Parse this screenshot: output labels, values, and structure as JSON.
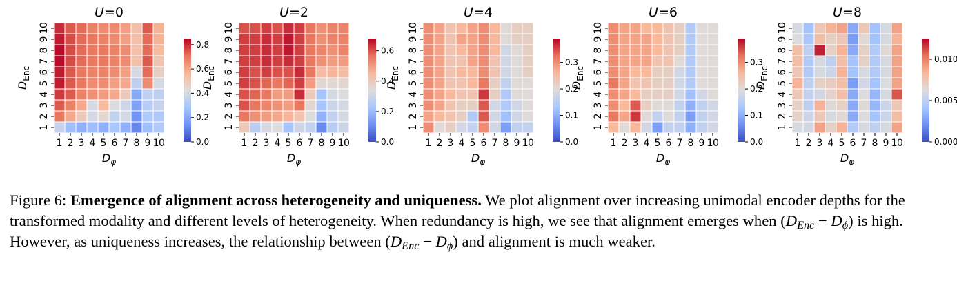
{
  "colormap": {
    "name": "coolwarm",
    "stops": [
      "#3b4cc0",
      "#6f92f3",
      "#aac7fd",
      "#dddcdc",
      "#f7b89c",
      "#e7745b",
      "#b40426"
    ]
  },
  "chart_data": [
    {
      "type": "heatmap",
      "title": "U=0",
      "xlabel": "D_φ",
      "ylabel": "D_Enc",
      "x": [
        1,
        2,
        3,
        4,
        5,
        6,
        7,
        8,
        9,
        10
      ],
      "y": [
        1,
        2,
        3,
        4,
        5,
        6,
        7,
        8,
        9,
        10
      ],
      "vmin": 0.0,
      "vmax": 0.85,
      "colorbar_ticks": [
        "0.0",
        "0.2",
        "0.4",
        "0.6",
        "0.8"
      ],
      "values": [
        [
          0.36,
          0.26,
          0.22,
          0.26,
          0.22,
          0.28,
          0.22,
          0.12,
          0.26,
          0.3
        ],
        [
          0.7,
          0.6,
          0.5,
          0.4,
          0.45,
          0.35,
          0.4,
          0.15,
          0.3,
          0.3
        ],
        [
          0.74,
          0.68,
          0.6,
          0.4,
          0.56,
          0.42,
          0.38,
          0.18,
          0.32,
          0.36
        ],
        [
          0.78,
          0.74,
          0.68,
          0.65,
          0.63,
          0.6,
          0.5,
          0.2,
          0.34,
          0.34
        ],
        [
          0.82,
          0.74,
          0.7,
          0.66,
          0.66,
          0.62,
          0.6,
          0.34,
          0.66,
          0.4
        ],
        [
          0.82,
          0.74,
          0.7,
          0.68,
          0.68,
          0.66,
          0.62,
          0.4,
          0.72,
          0.48
        ],
        [
          0.84,
          0.76,
          0.72,
          0.7,
          0.7,
          0.68,
          0.66,
          0.54,
          0.74,
          0.52
        ],
        [
          0.84,
          0.76,
          0.72,
          0.7,
          0.7,
          0.68,
          0.66,
          0.54,
          0.72,
          0.56
        ],
        [
          0.82,
          0.76,
          0.72,
          0.7,
          0.68,
          0.66,
          0.62,
          0.54,
          0.72,
          0.58
        ],
        [
          0.8,
          0.74,
          0.72,
          0.68,
          0.66,
          0.66,
          0.62,
          0.54,
          0.74,
          0.58
        ]
      ]
    },
    {
      "type": "heatmap",
      "title": "U=2",
      "xlabel": "D_φ",
      "ylabel": "D_Enc",
      "x": [
        1,
        2,
        3,
        4,
        5,
        6,
        7,
        8,
        9,
        10
      ],
      "y": [
        1,
        2,
        3,
        4,
        5,
        6,
        7,
        8,
        9,
        10
      ],
      "vmin": 0.0,
      "vmax": 0.68,
      "colorbar_ticks": [
        "0.0",
        "0.2",
        "0.4",
        "0.6"
      ],
      "values": [
        [
          0.4,
          0.26,
          0.32,
          0.34,
          0.22,
          0.3,
          0.28,
          0.1,
          0.26,
          0.3
        ],
        [
          0.56,
          0.52,
          0.5,
          0.48,
          0.46,
          0.42,
          0.34,
          0.18,
          0.28,
          0.32
        ],
        [
          0.6,
          0.56,
          0.54,
          0.52,
          0.5,
          0.56,
          0.36,
          0.22,
          0.3,
          0.32
        ],
        [
          0.6,
          0.58,
          0.56,
          0.5,
          0.5,
          0.64,
          0.4,
          0.22,
          0.32,
          0.34
        ],
        [
          0.62,
          0.6,
          0.58,
          0.56,
          0.58,
          0.62,
          0.5,
          0.36,
          0.36,
          0.36
        ],
        [
          0.62,
          0.6,
          0.62,
          0.6,
          0.6,
          0.64,
          0.56,
          0.44,
          0.46,
          0.44
        ],
        [
          0.62,
          0.62,
          0.64,
          0.62,
          0.64,
          0.62,
          0.56,
          0.52,
          0.5,
          0.5
        ],
        [
          0.62,
          0.62,
          0.64,
          0.62,
          0.66,
          0.62,
          0.56,
          0.54,
          0.52,
          0.54
        ],
        [
          0.62,
          0.62,
          0.64,
          0.62,
          0.66,
          0.62,
          0.56,
          0.52,
          0.54,
          0.54
        ],
        [
          0.6,
          0.6,
          0.62,
          0.6,
          0.64,
          0.62,
          0.56,
          0.52,
          0.54,
          0.54
        ]
      ]
    },
    {
      "type": "heatmap",
      "title": "U=4",
      "xlabel": "D_φ",
      "ylabel": "D_Enc",
      "x": [
        1,
        2,
        3,
        4,
        5,
        6,
        7,
        8,
        9,
        10
      ],
      "y": [
        1,
        2,
        3,
        4,
        5,
        6,
        7,
        8,
        9,
        10
      ],
      "vmin": 0.0,
      "vmax": 0.39,
      "colorbar_ticks": [
        "0.0",
        "0.1",
        "0.2",
        "0.3"
      ],
      "values": [
        [
          0.3,
          0.2,
          0.22,
          0.18,
          0.16,
          0.3,
          0.18,
          0.08,
          0.16,
          0.16
        ],
        [
          0.28,
          0.26,
          0.24,
          0.22,
          0.14,
          0.34,
          0.18,
          0.12,
          0.18,
          0.2
        ],
        [
          0.3,
          0.28,
          0.24,
          0.22,
          0.22,
          0.34,
          0.18,
          0.14,
          0.18,
          0.2
        ],
        [
          0.3,
          0.28,
          0.26,
          0.24,
          0.24,
          0.36,
          0.22,
          0.14,
          0.2,
          0.2
        ],
        [
          0.3,
          0.28,
          0.24,
          0.24,
          0.26,
          0.32,
          0.22,
          0.16,
          0.2,
          0.2
        ],
        [
          0.3,
          0.28,
          0.24,
          0.26,
          0.26,
          0.3,
          0.24,
          0.18,
          0.2,
          0.22
        ],
        [
          0.3,
          0.28,
          0.24,
          0.24,
          0.28,
          0.3,
          0.24,
          0.18,
          0.2,
          0.22
        ],
        [
          0.3,
          0.28,
          0.24,
          0.26,
          0.28,
          0.3,
          0.26,
          0.18,
          0.2,
          0.22
        ],
        [
          0.3,
          0.28,
          0.24,
          0.28,
          0.28,
          0.3,
          0.26,
          0.2,
          0.22,
          0.22
        ],
        [
          0.3,
          0.28,
          0.24,
          0.26,
          0.28,
          0.3,
          0.26,
          0.2,
          0.22,
          0.22
        ]
      ]
    },
    {
      "type": "heatmap",
      "title": "U=6",
      "xlabel": "D_φ",
      "ylabel": "D_Enc",
      "x": [
        1,
        2,
        3,
        4,
        5,
        6,
        7,
        8,
        9,
        10
      ],
      "y": [
        1,
        2,
        3,
        4,
        5,
        6,
        7,
        8,
        9,
        10
      ],
      "vmin": 0.0,
      "vmax": 0.39,
      "colorbar_ticks": [
        "0.0",
        "0.1",
        "0.2",
        "0.3"
      ],
      "values": [
        [
          0.26,
          0.2,
          0.26,
          0.18,
          0.08,
          0.16,
          0.16,
          0.1,
          0.16,
          0.18
        ],
        [
          0.32,
          0.28,
          0.36,
          0.2,
          0.16,
          0.2,
          0.16,
          0.08,
          0.16,
          0.18
        ],
        [
          0.3,
          0.26,
          0.34,
          0.22,
          0.2,
          0.2,
          0.16,
          0.1,
          0.16,
          0.18
        ],
        [
          0.3,
          0.28,
          0.26,
          0.22,
          0.22,
          0.22,
          0.18,
          0.12,
          0.18,
          0.2
        ],
        [
          0.32,
          0.28,
          0.24,
          0.24,
          0.22,
          0.22,
          0.18,
          0.14,
          0.2,
          0.2
        ],
        [
          0.3,
          0.28,
          0.26,
          0.26,
          0.22,
          0.22,
          0.18,
          0.14,
          0.2,
          0.2
        ],
        [
          0.3,
          0.28,
          0.28,
          0.28,
          0.24,
          0.24,
          0.2,
          0.14,
          0.2,
          0.2
        ],
        [
          0.3,
          0.28,
          0.28,
          0.28,
          0.26,
          0.24,
          0.22,
          0.14,
          0.2,
          0.2
        ],
        [
          0.3,
          0.28,
          0.28,
          0.28,
          0.26,
          0.24,
          0.22,
          0.14,
          0.2,
          0.2
        ],
        [
          0.3,
          0.28,
          0.28,
          0.26,
          0.26,
          0.24,
          0.22,
          0.14,
          0.2,
          0.2
        ]
      ]
    },
    {
      "type": "heatmap",
      "title": "U=8",
      "xlabel": "D_φ",
      "ylabel": "D_Enc",
      "x": [
        1,
        2,
        3,
        4,
        5,
        6,
        7,
        8,
        9,
        10
      ],
      "y": [
        1,
        2,
        3,
        4,
        5,
        6,
        7,
        8,
        9,
        10
      ],
      "vmin": 0.0,
      "vmax": 0.0125,
      "colorbar_ticks": [
        "0.000",
        "0.005",
        "0.010"
      ],
      "values": [
        [
          0.006,
          0.0058,
          0.009,
          0.007,
          0.0085,
          0.0045,
          0.006,
          0.005,
          0.006,
          0.009
        ],
        [
          0.0068,
          0.0055,
          0.0075,
          0.006,
          0.0065,
          0.003,
          0.0062,
          0.004,
          0.0055,
          0.008
        ],
        [
          0.007,
          0.005,
          0.0085,
          0.0065,
          0.007,
          0.003,
          0.0065,
          0.0035,
          0.0055,
          0.0075
        ],
        [
          0.0075,
          0.0052,
          0.0058,
          0.0068,
          0.008,
          0.003,
          0.0062,
          0.0035,
          0.006,
          0.011
        ],
        [
          0.0085,
          0.005,
          0.007,
          0.0072,
          0.008,
          0.0025,
          0.0058,
          0.004,
          0.0062,
          0.009
        ],
        [
          0.0075,
          0.0045,
          0.006,
          0.0055,
          0.0085,
          0.004,
          0.006,
          0.0045,
          0.006,
          0.009
        ],
        [
          0.008,
          0.0045,
          0.006,
          0.005,
          0.008,
          0.004,
          0.007,
          0.0045,
          0.006,
          0.009
        ],
        [
          0.008,
          0.005,
          0.012,
          0.007,
          0.0085,
          0.003,
          0.007,
          0.0045,
          0.0065,
          0.009
        ],
        [
          0.0062,
          0.0042,
          0.008,
          0.007,
          0.0075,
          0.0025,
          0.0065,
          0.004,
          0.006,
          0.0085
        ],
        [
          0.006,
          0.004,
          0.0075,
          0.0085,
          0.009,
          0.003,
          0.0075,
          0.004,
          0.006,
          0.009
        ]
      ]
    }
  ],
  "caption": {
    "label": "Figure 6:",
    "bold": "Emergence of alignment across heterogeneity and uniqueness.",
    "part1": "We plot alignment over increasing unimodal encoder depths for the transformed modality and different levels of heterogeneity. When redundancy is high, we see that alignment emerges when (",
    "part2": ") is high. However, as uniqueness increases, the relationship between (",
    "part3": ") and alignment is much weaker.",
    "math_expr": {
      "a": "D",
      "a_sub": "Enc",
      "op": "−",
      "b": "D",
      "b_sub": "ϕ"
    }
  }
}
